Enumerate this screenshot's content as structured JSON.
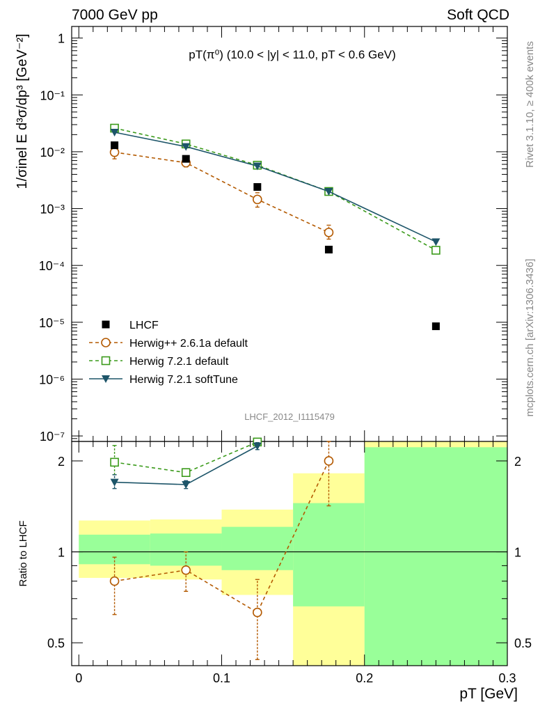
{
  "header": {
    "left": "7000 GeV pp",
    "right": "Soft QCD"
  },
  "side_labels": {
    "rivet": "Rivet 3.1.10, ≥ 400k events",
    "mcplots": "mcplots.cern.ch [arXiv:1306.3436]"
  },
  "analysis_tag": "LHCF_2012_I1115479",
  "colors": {
    "data": "#000000",
    "herwigpp": "#b35900",
    "herwig_default": "#3a9a1a",
    "herwig_soft": "#1d5569",
    "band_outer": "#ffff99",
    "band_inner": "#99ff99"
  },
  "chart_data": [
    {
      "type": "scatter",
      "title": "pT(π⁰) (10.0 < |y| < 11.0, pT < 0.6 GeV)",
      "ylabel": "1/σinel E d³σ/dp³ [GeV⁻²]",
      "xlabel": "",
      "yscale": "log",
      "xlim": [
        -0.005,
        0.3
      ],
      "ylim": [
        8e-08,
        1.6
      ],
      "ytick_labels": [
        "1",
        "10⁻¹",
        "10⁻²",
        "10⁻³",
        "10⁻⁴",
        "10⁻⁵",
        "10⁻⁶",
        "10⁻⁷"
      ],
      "legend_position": "lower-left",
      "series": [
        {
          "name": "LHCF",
          "style": "markers",
          "x": [
            0.025,
            0.075,
            0.125,
            0.175,
            0.25
          ],
          "y": [
            0.013,
            0.0075,
            0.0024,
            0.00019,
            8.5e-06
          ]
        },
        {
          "name": "Herwig++ 2.6.1a default",
          "style": "dashed-open-circle",
          "x": [
            0.025,
            0.075,
            0.125,
            0.175
          ],
          "y": [
            0.0098,
            0.0064,
            0.00145,
            0.00038
          ],
          "yerr_low": [
            0.0075,
            0.0054,
            0.00106,
            0.00029
          ],
          "yerr_high": [
            0.0125,
            0.0075,
            0.0019,
            0.00051
          ]
        },
        {
          "name": "Herwig 7.2.1 default",
          "style": "dashed-open-square",
          "x": [
            0.025,
            0.075,
            0.125,
            0.175,
            0.25
          ],
          "y": [
            0.026,
            0.0137,
            0.0058,
            0.002,
            0.000185
          ]
        },
        {
          "name": "Herwig 7.2.1 softTune",
          "style": "solid-filled-triangle",
          "x": [
            0.025,
            0.075,
            0.125,
            0.175,
            0.25
          ],
          "y": [
            0.022,
            0.0123,
            0.0056,
            0.002,
            0.00026
          ]
        }
      ]
    },
    {
      "type": "scatter",
      "ylabel": "Ratio to LHCF",
      "xlabel": "pT [GeV]",
      "yscale": "log",
      "xlim": [
        -0.005,
        0.3
      ],
      "ylim": [
        0.42,
        2.32
      ],
      "x_ticks": [
        0,
        0.1,
        0.2,
        0.3
      ],
      "x_tick_labels": [
        "0",
        "0.1",
        "0.2",
        "0.3"
      ],
      "y_ticks": [
        0.5,
        1,
        2
      ],
      "y_tick_labels": [
        "0.5",
        "1",
        "2"
      ],
      "bands": [
        {
          "x0": 0.0,
          "x1": 0.05,
          "outer": [
            0.82,
            1.27
          ],
          "inner": [
            0.91,
            1.14
          ]
        },
        {
          "x0": 0.05,
          "x1": 0.1,
          "outer": [
            0.81,
            1.28
          ],
          "inner": [
            0.9,
            1.15
          ]
        },
        {
          "x0": 0.1,
          "x1": 0.15,
          "outer": [
            0.72,
            1.38
          ],
          "inner": [
            0.87,
            1.21
          ]
        },
        {
          "x0": 0.15,
          "x1": 0.2,
          "outer": [
            0.4,
            1.82
          ],
          "inner": [
            0.66,
            1.45
          ]
        },
        {
          "x0": 0.2,
          "x1": 0.3,
          "outer": [
            0.4,
            2.4
          ],
          "inner": [
            0.4,
            2.22
          ]
        }
      ],
      "series": [
        {
          "name": "Herwig++ 2.6.1a default",
          "x": [
            0.025,
            0.075,
            0.125,
            0.175
          ],
          "y": [
            0.8,
            0.87,
            0.63,
            2.0
          ],
          "yerr_low": [
            0.62,
            0.74,
            0.44,
            1.42
          ],
          "yerr_high": [
            0.96,
            1.0,
            0.81,
            2.6
          ]
        },
        {
          "name": "Herwig 7.2.1 default",
          "x": [
            0.025,
            0.075,
            0.125
          ],
          "y": [
            1.98,
            1.83,
            2.31
          ],
          "yerr_low": [
            1.8,
            1.8,
            2.26
          ],
          "yerr_high": [
            2.25,
            1.86,
            2.34
          ]
        },
        {
          "name": "Herwig 7.2.1 softTune",
          "x": [
            0.025,
            0.075,
            0.125
          ],
          "y": [
            1.7,
            1.67,
            2.24
          ],
          "yerr_low": [
            1.62,
            1.62,
            2.18
          ],
          "yerr_high": [
            1.8,
            1.72,
            2.3
          ]
        }
      ]
    }
  ]
}
